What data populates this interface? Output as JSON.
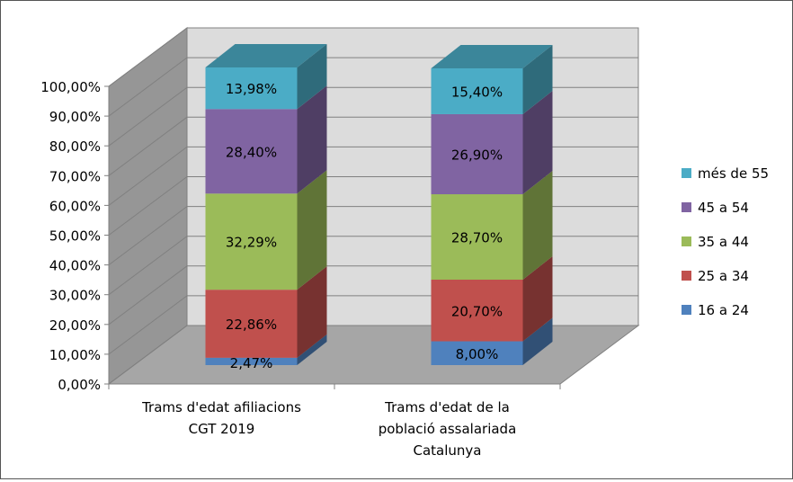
{
  "chart_data": {
    "type": "bar",
    "stacked": true,
    "three_d": true,
    "categories": [
      [
        "Trams d'edat afiliacions",
        "CGT 2019"
      ],
      [
        "Trams d'edat de la",
        "població assalariada",
        "Catalunya"
      ]
    ],
    "series": [
      {
        "name": "16 a 24",
        "values": [
          2.47,
          8.0
        ],
        "labels": [
          "2,47%",
          "8,00%"
        ],
        "color": "#4f81bd"
      },
      {
        "name": "25 a 34",
        "values": [
          22.86,
          20.7
        ],
        "labels": [
          "22,86%",
          "20,70%"
        ],
        "color": "#c0504d"
      },
      {
        "name": "35 a 44",
        "values": [
          32.29,
          28.7
        ],
        "labels": [
          "32,29%",
          "28,70%"
        ],
        "color": "#9bbb59"
      },
      {
        "name": "45 a 54",
        "values": [
          28.4,
          26.9
        ],
        "labels": [
          "28,40%",
          "26,90%"
        ],
        "color": "#8064a2"
      },
      {
        "name": "més de 55",
        "values": [
          13.98,
          15.4
        ],
        "labels": [
          "13,98%",
          "15,40%"
        ],
        "color": "#4bacc6"
      }
    ],
    "y_ticks": [
      "0,00%",
      "10,00%",
      "20,00%",
      "30,00%",
      "40,00%",
      "50,00%",
      "60,00%",
      "70,00%",
      "80,00%",
      "90,00%",
      "100,00%"
    ],
    "ylim": [
      0,
      100
    ],
    "grid": true,
    "legend_position": "right",
    "legend_order": [
      "més de 55",
      "45 a 54",
      "35 a 44",
      "25 a 34",
      "16 a 24"
    ],
    "wall_color": "#c0c0c0",
    "floor_color": "#a6a6a6"
  }
}
